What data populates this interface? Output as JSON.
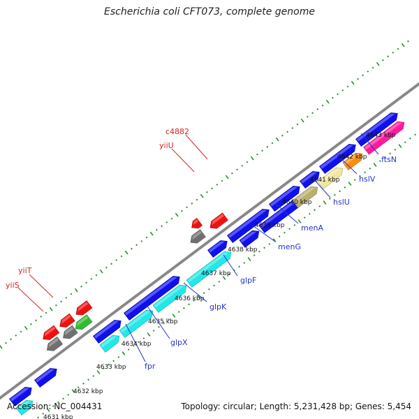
{
  "title": "Escherichia coli CFT073, complete genome",
  "footer": {
    "accession": "Accession: NC_004431",
    "summary": "Topology: circular; Length: 5,231,428 bp; Genes: 5,454"
  },
  "colors": {
    "backbone": "#888888",
    "dots": "#2e8b2e",
    "forward_label": "#2233cc",
    "reverse_label": "#dd2222",
    "blue": "#1010ee",
    "cyan": "#22e8e8",
    "olive": "#b8b070",
    "khaki": "#f0e6a0",
    "orange": "#ff8c10",
    "magenta": "#ff1aa0",
    "grey": "#707070",
    "red": "#ee1111",
    "green": "#33bb33"
  },
  "ticks": [
    "4631 kbp",
    "4632 kbp",
    "4633 kbp",
    "4634 kbp",
    "4635 kbp",
    "4636 kbp",
    "4637 kbp",
    "4638 kbp",
    "4639 kbp",
    "4640 kbp",
    "4641 kbp",
    "4642 kbp",
    "4643 kbp"
  ],
  "gene_labels": {
    "forward": [
      "fpr",
      "glpX",
      "glpK",
      "glpF",
      "menG",
      "menA",
      "hslU",
      "hslV",
      "ftsN"
    ],
    "reverse": [
      "yiiS",
      "yiiT",
      "yiiU",
      "c4882"
    ]
  },
  "features": [
    {
      "track": "fwd-outer",
      "color": "blue"
    },
    {
      "track": "fwd-inner",
      "color": "cyan"
    },
    {
      "track": "fwd-outer",
      "color": "blue"
    },
    {
      "track": "fwd-inner",
      "color": "cyan"
    },
    {
      "track": "fwd-outer",
      "color": "blue"
    },
    {
      "track": "fwd-inner",
      "color": "cyan"
    },
    {
      "track": "fwd-inner",
      "color": "cyan"
    },
    {
      "track": "fwd-outer",
      "color": "blue"
    },
    {
      "track": "fwd-inner",
      "color": "cyan"
    },
    {
      "track": "fwd-outer",
      "color": "blue"
    },
    {
      "track": "fwd-outer",
      "color": "blue"
    },
    {
      "track": "fwd-inner",
      "color": "blue"
    },
    {
      "track": "fwd-inner",
      "color": "blue"
    },
    {
      "track": "fwd-outer",
      "color": "blue"
    },
    {
      "track": "fwd-inner",
      "color": "olive"
    },
    {
      "track": "fwd-outer",
      "color": "blue"
    },
    {
      "track": "fwd-inner",
      "color": "khaki"
    },
    {
      "track": "fwd-outer",
      "color": "blue"
    },
    {
      "track": "fwd-inner",
      "color": "orange"
    },
    {
      "track": "fwd-outer",
      "color": "blue"
    },
    {
      "track": "fwd-inner",
      "color": "magenta"
    },
    {
      "track": "rev-outer",
      "color": "grey"
    },
    {
      "track": "rev-inner",
      "color": "red"
    },
    {
      "track": "rev-outer",
      "color": "grey"
    },
    {
      "track": "rev-inner",
      "color": "red"
    },
    {
      "track": "rev-outer",
      "color": "green"
    },
    {
      "track": "rev-inner",
      "color": "red"
    },
    {
      "track": "rev-outer",
      "color": "grey"
    },
    {
      "track": "rev-inner",
      "color": "red"
    },
    {
      "track": "rev-outer",
      "color": "red"
    }
  ]
}
